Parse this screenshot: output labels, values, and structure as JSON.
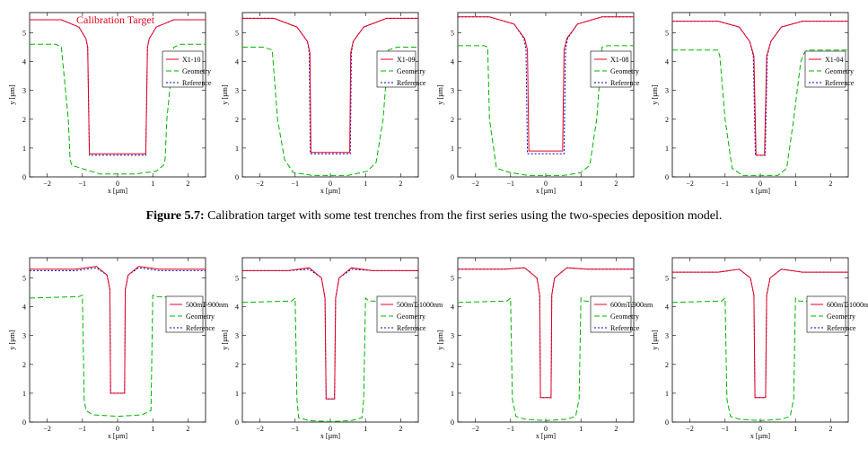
{
  "caption": {
    "label": "Figure 5.7:",
    "text": "Calibration target with some test trenches from the first series using the two-species deposition model."
  },
  "colors": {
    "target": "#e8001c",
    "geometry": "#00b400",
    "reference": "#0000c8"
  },
  "chart_data": [
    {
      "type": "line",
      "title": "",
      "annotation": "Calibration Target",
      "legend": [
        "X1-10",
        "Geometry",
        "Reference"
      ],
      "xlabel": "x [µm]",
      "ylabel": "y [µm]",
      "xlim": [
        -2.5,
        2.5
      ],
      "ylim": [
        0,
        5.7
      ],
      "xticks": [
        -2,
        -1,
        0,
        1,
        2
      ],
      "yticks": [
        0,
        1,
        2,
        3,
        4,
        5
      ],
      "series": [
        {
          "name": "X1-10",
          "x": [
            -2.5,
            -1.6,
            -1.1,
            -0.9,
            -0.85,
            -0.8,
            0.8,
            0.85,
            0.9,
            1.1,
            1.6,
            2.5
          ],
          "y": [
            5.45,
            5.45,
            5.2,
            4.8,
            4.5,
            0.8,
            0.8,
            4.5,
            4.8,
            5.2,
            5.45,
            5.45
          ]
        },
        {
          "name": "Geometry",
          "x": [
            -2.5,
            -1.75,
            -1.6,
            -1.4,
            -1.35,
            -1.3,
            -0.5,
            0.5,
            1.1,
            1.3,
            1.35,
            1.4,
            1.6,
            1.8,
            2.5
          ],
          "y": [
            4.6,
            4.6,
            4.5,
            2.0,
            0.6,
            0.4,
            0.1,
            0.1,
            0.2,
            0.4,
            0.6,
            2.0,
            4.5,
            4.6,
            4.6
          ]
        },
        {
          "name": "Reference",
          "x": [
            -2.5,
            -1.6,
            -1.1,
            -0.9,
            -0.85,
            -0.8,
            0.8,
            0.85,
            0.9,
            1.1,
            1.6,
            2.5
          ],
          "y": [
            5.45,
            5.45,
            5.2,
            4.8,
            4.5,
            0.75,
            0.75,
            4.5,
            4.8,
            5.2,
            5.45,
            5.45
          ]
        }
      ]
    },
    {
      "type": "line",
      "title": "",
      "legend": [
        "X1-09",
        "Geometry",
        "Reference"
      ],
      "xlabel": "x [µm]",
      "ylabel": "y [µm]",
      "xlim": [
        -2.5,
        2.5
      ],
      "ylim": [
        0,
        5.7
      ],
      "xticks": [
        -2,
        -1,
        0,
        1,
        2
      ],
      "yticks": [
        0,
        1,
        2,
        3,
        4,
        5
      ],
      "series": [
        {
          "name": "X1-09",
          "x": [
            -2.5,
            -1.6,
            -0.95,
            -0.65,
            -0.58,
            -0.55,
            0.55,
            0.58,
            0.65,
            0.95,
            1.6,
            2.5
          ],
          "y": [
            5.5,
            5.5,
            5.2,
            4.7,
            4.3,
            0.85,
            0.85,
            4.3,
            4.7,
            5.2,
            5.5,
            5.5
          ]
        },
        {
          "name": "Geometry",
          "x": [
            -2.5,
            -1.9,
            -1.65,
            -1.5,
            -1.3,
            -1.05,
            -0.5,
            0.5,
            1.05,
            1.3,
            1.5,
            1.65,
            1.9,
            2.5
          ],
          "y": [
            4.5,
            4.5,
            4.4,
            2.0,
            0.6,
            0.15,
            0.05,
            0.05,
            0.2,
            0.5,
            2.0,
            4.4,
            4.5,
            4.5
          ]
        },
        {
          "name": "Reference",
          "x": [
            -2.5,
            -1.6,
            -0.95,
            -0.65,
            -0.6,
            -0.57,
            0.57,
            0.6,
            0.65,
            0.95,
            1.6,
            2.5
          ],
          "y": [
            5.5,
            5.5,
            5.2,
            4.7,
            4.3,
            0.8,
            0.8,
            4.3,
            4.7,
            5.2,
            5.5,
            5.5
          ]
        }
      ]
    },
    {
      "type": "line",
      "title": "",
      "legend": [
        "X1-08",
        "Geometry",
        "Reference"
      ],
      "xlabel": "x [µm]",
      "ylabel": "y [µm]",
      "xlim": [
        -2.5,
        2.5
      ],
      "ylim": [
        0,
        5.7
      ],
      "xticks": [
        -2,
        -1,
        0,
        1,
        2
      ],
      "yticks": [
        0,
        1,
        2,
        3,
        4,
        5
      ],
      "series": [
        {
          "name": "X1-08",
          "x": [
            -2.5,
            -1.6,
            -0.9,
            -0.6,
            -0.52,
            -0.48,
            0.48,
            0.52,
            0.6,
            0.9,
            1.6,
            2.5
          ],
          "y": [
            5.55,
            5.55,
            5.3,
            4.8,
            4.4,
            0.9,
            0.9,
            4.4,
            4.8,
            5.3,
            5.55,
            5.55
          ]
        },
        {
          "name": "Geometry",
          "x": [
            -2.5,
            -1.75,
            -1.65,
            -1.6,
            -1.4,
            -1.0,
            -0.5,
            0.5,
            1.0,
            1.25,
            1.45,
            1.6,
            1.75,
            2.5
          ],
          "y": [
            4.55,
            4.55,
            4.5,
            2.0,
            0.3,
            0.15,
            0.05,
            0.05,
            0.15,
            0.4,
            2.0,
            4.5,
            4.55,
            4.55
          ]
        },
        {
          "name": "Reference",
          "x": [
            -2.5,
            -1.6,
            -0.9,
            -0.62,
            -0.56,
            -0.52,
            0.52,
            0.56,
            0.62,
            0.9,
            1.6,
            2.5
          ],
          "y": [
            5.55,
            5.55,
            5.3,
            4.8,
            4.4,
            0.8,
            0.8,
            4.4,
            4.8,
            5.3,
            5.55,
            5.55
          ]
        }
      ]
    },
    {
      "type": "line",
      "title": "",
      "legend": [
        "X1-04",
        "Geometry",
        "Reference"
      ],
      "xlabel": "x [µm]",
      "ylabel": "y [µm]",
      "xlim": [
        -2.5,
        2.5
      ],
      "ylim": [
        0,
        5.7
      ],
      "xticks": [
        -2,
        -1,
        0,
        1,
        2
      ],
      "yticks": [
        0,
        1,
        2,
        3,
        4,
        5
      ],
      "series": [
        {
          "name": "X1-04",
          "x": [
            -2.5,
            -1.2,
            -0.6,
            -0.3,
            -0.18,
            -0.12,
            0.12,
            0.18,
            0.3,
            0.6,
            1.2,
            2.5
          ],
          "y": [
            5.4,
            5.4,
            5.2,
            4.7,
            4.2,
            0.75,
            0.75,
            4.2,
            4.7,
            5.2,
            5.4,
            5.4
          ]
        },
        {
          "name": "Geometry",
          "x": [
            -2.5,
            -1.3,
            -1.2,
            -1.15,
            -1.0,
            -0.8,
            -0.5,
            0.5,
            0.75,
            0.95,
            1.15,
            1.25,
            1.35,
            2.5
          ],
          "y": [
            4.4,
            4.4,
            4.4,
            4.2,
            2.0,
            0.3,
            0.05,
            0.05,
            0.3,
            2.0,
            4.0,
            4.3,
            4.4,
            4.4
          ]
        },
        {
          "name": "Reference",
          "x": [
            -2.5,
            -1.2,
            -0.6,
            -0.3,
            -0.2,
            -0.14,
            0.14,
            0.2,
            0.3,
            0.6,
            1.2,
            2.5
          ],
          "y": [
            5.4,
            5.4,
            5.2,
            4.7,
            4.2,
            0.75,
            0.75,
            4.2,
            4.7,
            5.2,
            5.4,
            5.4
          ]
        }
      ]
    },
    {
      "type": "line",
      "title": "",
      "legend": [
        "500mT-900nm",
        "Geometry",
        "Reference"
      ],
      "xlabel": "x [µm]",
      "ylabel": "y [µm]",
      "xlim": [
        -2.5,
        2.5
      ],
      "ylim": [
        0,
        5.7
      ],
      "xticks": [
        -2,
        -1,
        0,
        1,
        2
      ],
      "yticks": [
        0,
        1,
        2,
        3,
        4,
        5
      ],
      "series": [
        {
          "name": "500mT-900nm",
          "x": [
            -2.5,
            -1.2,
            -0.6,
            -0.3,
            -0.22,
            -0.2,
            0.2,
            0.22,
            0.3,
            0.6,
            1.2,
            2.5
          ],
          "y": [
            5.3,
            5.3,
            5.4,
            5.1,
            4.6,
            1.0,
            1.0,
            4.6,
            5.1,
            5.4,
            5.3,
            5.3
          ]
        },
        {
          "name": "Geometry",
          "x": [
            -2.5,
            -1.1,
            -1.0,
            -0.95,
            -0.9,
            -0.7,
            0,
            0.7,
            0.95,
            1.0,
            1.1,
            2.5
          ],
          "y": [
            4.3,
            4.35,
            4.4,
            0.8,
            0.4,
            0.25,
            0.2,
            0.25,
            0.4,
            4.4,
            4.35,
            4.3
          ]
        },
        {
          "name": "Reference",
          "x": [
            -2.5,
            -1.2,
            -0.6,
            -0.3,
            -0.22,
            -0.2,
            0.2,
            0.22,
            0.3,
            0.6,
            1.2,
            2.5
          ],
          "y": [
            5.25,
            5.25,
            5.35,
            5.1,
            4.6,
            1.0,
            1.0,
            4.6,
            5.1,
            5.35,
            5.25,
            5.25
          ]
        }
      ]
    },
    {
      "type": "line",
      "title": "",
      "legend": [
        "500mT-1000nm",
        "Geometry",
        "Reference"
      ],
      "xlabel": "x [µm]",
      "ylabel": "y [µm]",
      "xlim": [
        -2.5,
        2.5
      ],
      "ylim": [
        0,
        5.7
      ],
      "xticks": [
        -2,
        -1,
        0,
        1,
        2
      ],
      "yticks": [
        0,
        1,
        2,
        3,
        4,
        5
      ],
      "series": [
        {
          "name": "500mT-1000nm",
          "x": [
            -2.5,
            -1.2,
            -0.6,
            -0.25,
            -0.15,
            -0.12,
            0.12,
            0.15,
            0.25,
            0.6,
            1.2,
            2.5
          ],
          "y": [
            5.25,
            5.25,
            5.35,
            5.0,
            4.3,
            0.8,
            0.8,
            4.3,
            5.0,
            5.35,
            5.25,
            5.25
          ]
        },
        {
          "name": "Geometry",
          "x": [
            -2.5,
            -1.1,
            -1.0,
            -0.95,
            -0.9,
            -0.6,
            0,
            0.6,
            0.9,
            0.95,
            1.0,
            1.1,
            2.5
          ],
          "y": [
            4.15,
            4.2,
            4.3,
            0.8,
            0.15,
            0.05,
            0.02,
            0.05,
            0.15,
            0.8,
            4.3,
            4.2,
            4.15
          ]
        },
        {
          "name": "Reference",
          "x": [
            -2.5,
            -1.2,
            -0.6,
            -0.25,
            -0.15,
            -0.12,
            0.12,
            0.15,
            0.25,
            0.6,
            1.2,
            2.5
          ],
          "y": [
            5.25,
            5.25,
            5.3,
            5.0,
            4.3,
            0.8,
            0.8,
            4.3,
            5.0,
            5.3,
            5.25,
            5.25
          ]
        }
      ]
    },
    {
      "type": "line",
      "title": "",
      "legend": [
        "600mT-900nm",
        "Geometry",
        "Reference"
      ],
      "xlabel": "x [µm]",
      "ylabel": "y [µm]",
      "xlim": [
        -2.5,
        2.5
      ],
      "ylim": [
        0,
        5.7
      ],
      "xticks": [
        -2,
        -1,
        0,
        1,
        2
      ],
      "yticks": [
        0,
        1,
        2,
        3,
        4,
        5
      ],
      "series": [
        {
          "name": "600mT-900nm",
          "x": [
            -2.5,
            -1.2,
            -0.6,
            -0.25,
            -0.17,
            -0.15,
            0.15,
            0.17,
            0.25,
            0.6,
            1.2,
            2.5
          ],
          "y": [
            5.3,
            5.3,
            5.35,
            5.0,
            4.4,
            0.85,
            0.85,
            4.4,
            5.0,
            5.35,
            5.3,
            5.3
          ]
        },
        {
          "name": "Geometry",
          "x": [
            -2.5,
            -1.1,
            -1.0,
            -0.95,
            -0.85,
            -0.6,
            0,
            0.6,
            0.85,
            0.95,
            1.0,
            1.1,
            2.5
          ],
          "y": [
            4.15,
            4.2,
            4.3,
            0.8,
            0.2,
            0.1,
            0.05,
            0.1,
            0.2,
            0.8,
            4.3,
            4.2,
            4.15
          ]
        },
        {
          "name": "Reference",
          "x": [
            -2.5,
            -1.2,
            -0.6,
            -0.25,
            -0.17,
            -0.15,
            0.15,
            0.17,
            0.25,
            0.6,
            1.2,
            2.5
          ],
          "y": [
            5.3,
            5.3,
            5.35,
            5.0,
            4.4,
            0.85,
            0.85,
            4.4,
            5.0,
            5.35,
            5.3,
            5.3
          ]
        }
      ]
    },
    {
      "type": "line",
      "title": "",
      "legend": [
        "600mT-1000nm",
        "Geometry",
        "Reference"
      ],
      "xlabel": "x [µm]",
      "ylabel": "y [µm]",
      "xlim": [
        -2.5,
        2.5
      ],
      "ylim": [
        0,
        5.7
      ],
      "xticks": [
        -2,
        -1,
        0,
        1,
        2
      ],
      "yticks": [
        0,
        1,
        2,
        3,
        4,
        5
      ],
      "series": [
        {
          "name": "600mT-1000nm",
          "x": [
            -2.5,
            -1.2,
            -0.6,
            -0.28,
            -0.18,
            -0.15,
            0.15,
            0.18,
            0.28,
            0.6,
            1.2,
            2.5
          ],
          "y": [
            5.2,
            5.2,
            5.3,
            5.0,
            4.4,
            0.85,
            0.85,
            4.4,
            5.0,
            5.3,
            5.2,
            5.2
          ]
        },
        {
          "name": "Geometry",
          "x": [
            -2.5,
            -1.1,
            -1.0,
            -0.95,
            -0.85,
            -0.6,
            0,
            0.6,
            0.85,
            0.95,
            1.0,
            1.1,
            2.5
          ],
          "y": [
            4.15,
            4.2,
            4.3,
            0.8,
            0.2,
            0.1,
            0.05,
            0.1,
            0.2,
            0.8,
            4.3,
            4.2,
            4.15
          ]
        },
        {
          "name": "Reference",
          "x": [
            -2.5,
            -1.2,
            -0.6,
            -0.28,
            -0.18,
            -0.15,
            0.15,
            0.18,
            0.28,
            0.6,
            1.2,
            2.5
          ],
          "y": [
            5.2,
            5.2,
            5.3,
            5.0,
            4.4,
            0.85,
            0.85,
            4.4,
            5.0,
            5.3,
            5.2,
            5.2
          ]
        }
      ]
    }
  ]
}
